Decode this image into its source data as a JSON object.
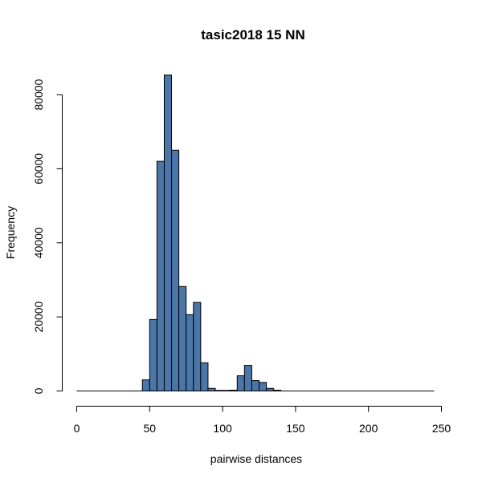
{
  "chart_data": {
    "type": "bar",
    "subtype": "histogram",
    "title": "tasic2018 15 NN",
    "xlabel": "pairwise distances",
    "ylabel": "Frequency",
    "bin_width": 5,
    "xlim": [
      0,
      250
    ],
    "ylim": [
      0,
      85000
    ],
    "x_axis_range": [
      0,
      245
    ],
    "x_ticks": [
      0,
      50,
      100,
      150,
      200,
      250
    ],
    "x_tick_labels": [
      "0",
      "50",
      "100",
      "150",
      "200",
      "250"
    ],
    "y_ticks": [
      0,
      20000,
      40000,
      60000,
      80000
    ],
    "y_tick_labels": [
      "0",
      "20000",
      "40000",
      "60000",
      "80000"
    ],
    "bins": [
      {
        "x0": 45,
        "x1": 50,
        "value": 3000
      },
      {
        "x0": 50,
        "x1": 55,
        "value": 19300
      },
      {
        "x0": 55,
        "x1": 60,
        "value": 62000
      },
      {
        "x0": 60,
        "x1": 65,
        "value": 85300
      },
      {
        "x0": 65,
        "x1": 70,
        "value": 65000
      },
      {
        "x0": 70,
        "x1": 75,
        "value": 28200
      },
      {
        "x0": 75,
        "x1": 80,
        "value": 20600
      },
      {
        "x0": 80,
        "x1": 85,
        "value": 23900
      },
      {
        "x0": 85,
        "x1": 90,
        "value": 7600
      },
      {
        "x0": 90,
        "x1": 95,
        "value": 700
      },
      {
        "x0": 95,
        "x1": 100,
        "value": 150
      },
      {
        "x0": 100,
        "x1": 105,
        "value": 150
      },
      {
        "x0": 105,
        "x1": 110,
        "value": 200
      },
      {
        "x0": 110,
        "x1": 115,
        "value": 4100
      },
      {
        "x0": 115,
        "x1": 120,
        "value": 6900
      },
      {
        "x0": 120,
        "x1": 125,
        "value": 2800
      },
      {
        "x0": 125,
        "x1": 130,
        "value": 2300
      },
      {
        "x0": 130,
        "x1": 135,
        "value": 700
      },
      {
        "x0": 135,
        "x1": 140,
        "value": 200
      }
    ],
    "colors": {
      "bar_fill": "#4a77a8",
      "bar_stroke": "#000000",
      "axis": "#000000"
    },
    "grid": false,
    "legend": "none"
  }
}
